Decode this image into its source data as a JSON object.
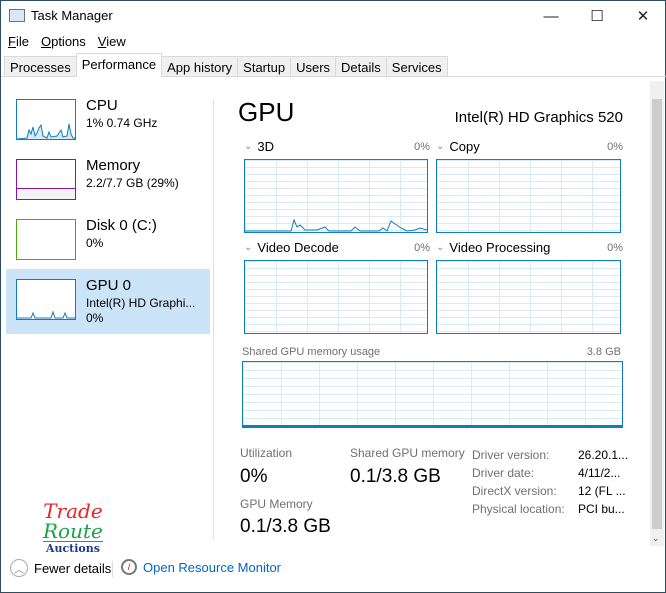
{
  "window": {
    "title": "Task Manager",
    "minimize": "—",
    "maximize": "☐",
    "close": "✕"
  },
  "menu": [
    "File",
    "Options",
    "View"
  ],
  "tabs": [
    "Processes",
    "Performance",
    "App history",
    "Startup",
    "Users",
    "Details",
    "Services"
  ],
  "active_tab": "Performance",
  "sidebar": [
    {
      "name": "CPU",
      "sub": "1% 0.74 GHz",
      "color": "#117dbb"
    },
    {
      "name": "Memory",
      "sub": "2.2/7.7 GB (29%)",
      "color": "#8b12ae"
    },
    {
      "name": "Disk 0 (C:)",
      "sub": "0%",
      "color": "#4da60c"
    },
    {
      "name": "GPU 0",
      "sub": "Intel(R) HD Graphi...",
      "sub2": "0%",
      "color": "#117dbb",
      "selected": true
    }
  ],
  "main": {
    "title": "GPU",
    "device": "Intel(R) HD Graphics 520",
    "engines": [
      {
        "label": "3D",
        "pct": "0%"
      },
      {
        "label": "Copy",
        "pct": "0%"
      },
      {
        "label": "Video Decode",
        "pct": "0%"
      },
      {
        "label": "Video Processing",
        "pct": "0%"
      }
    ],
    "shared_label": "Shared GPU memory usage",
    "shared_max": "3.8 GB",
    "stats": {
      "utilization_label": "Utilization",
      "utilization": "0%",
      "shared_label": "Shared GPU memory",
      "shared": "0.1/3.8 GB",
      "gpumem_label": "GPU Memory",
      "gpumem": "0.1/3.8 GB"
    },
    "driver": [
      {
        "k": "Driver version:",
        "v": "26.20.1..."
      },
      {
        "k": "Driver date:",
        "v": "4/11/2..."
      },
      {
        "k": "DirectX version:",
        "v": "12 (FL ..."
      },
      {
        "k": "Physical location:",
        "v": "PCI bu..."
      }
    ]
  },
  "footer": {
    "fewer": "Fewer details",
    "monitor": "Open Resource Monitor"
  },
  "watermark": {
    "l1": "Trade",
    "l2": "Route",
    "l3": "Auctions"
  }
}
